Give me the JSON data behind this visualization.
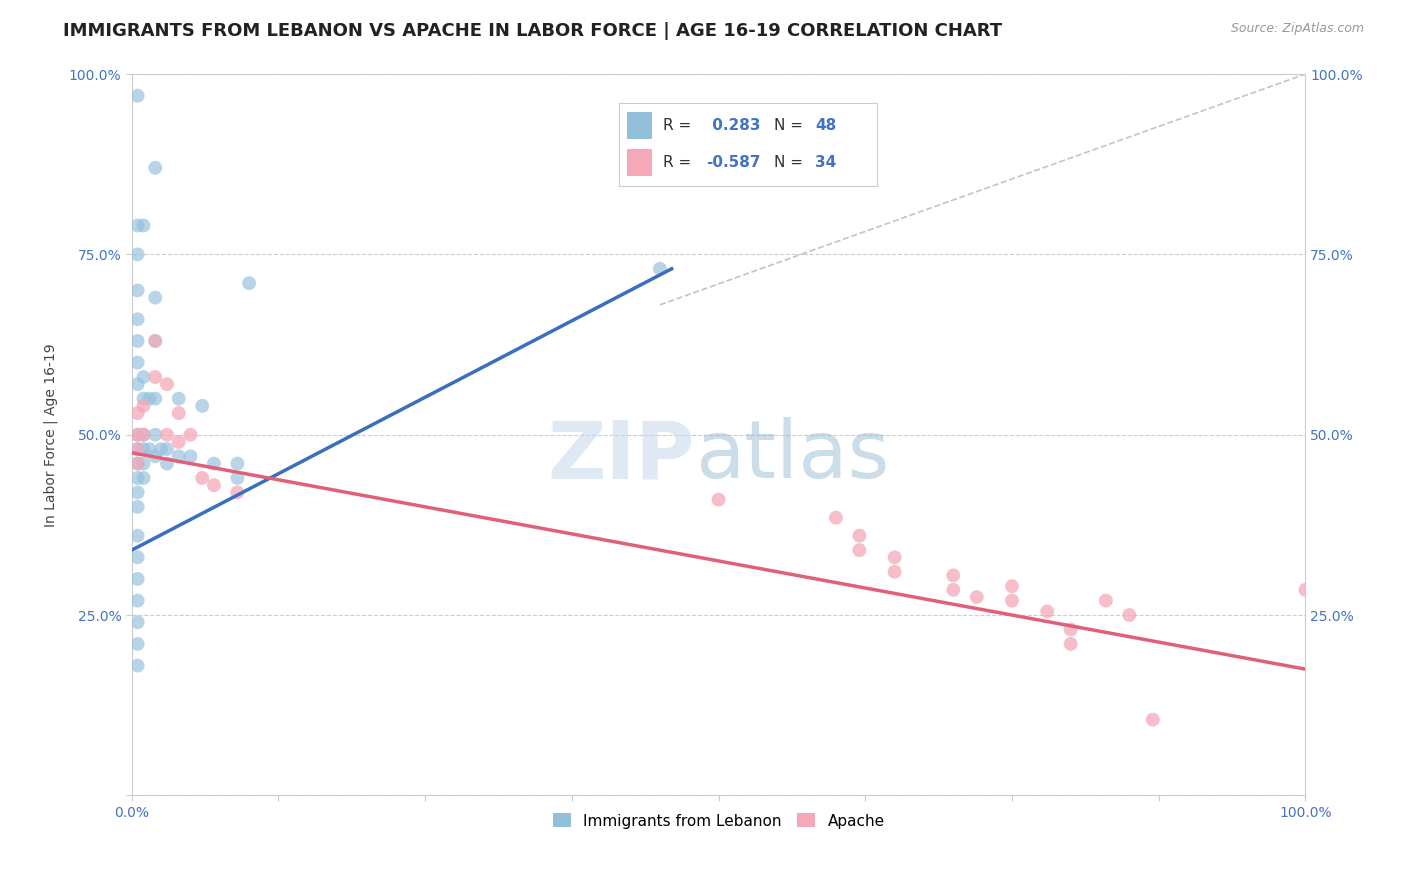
{
  "title": "IMMIGRANTS FROM LEBANON VS APACHE IN LABOR FORCE | AGE 16-19 CORRELATION CHART",
  "source": "Source: ZipAtlas.com",
  "ylabel": "In Labor Force | Age 16-19",
  "xlabel": "",
  "background_color": "#ffffff",
  "grid_color": "#c8c8c8",
  "lebanon_color": "#93bfdd",
  "apache_color": "#f4a8b8",
  "lebanon_R": 0.283,
  "lebanon_N": 48,
  "apache_R": -0.587,
  "apache_N": 34,
  "xmin": 0.0,
  "xmax": 1.0,
  "ymin": 0.0,
  "ymax": 1.0,
  "lebanon_points": [
    [
      0.005,
      0.97
    ],
    [
      0.02,
      0.87
    ],
    [
      0.005,
      0.79
    ],
    [
      0.005,
      0.75
    ],
    [
      0.01,
      0.79
    ],
    [
      0.005,
      0.7
    ],
    [
      0.02,
      0.69
    ],
    [
      0.005,
      0.66
    ],
    [
      0.005,
      0.63
    ],
    [
      0.02,
      0.63
    ],
    [
      0.005,
      0.6
    ],
    [
      0.005,
      0.57
    ],
    [
      0.01,
      0.58
    ],
    [
      0.01,
      0.55
    ],
    [
      0.015,
      0.55
    ],
    [
      0.02,
      0.55
    ],
    [
      0.04,
      0.55
    ],
    [
      0.06,
      0.54
    ],
    [
      0.45,
      0.73
    ],
    [
      0.1,
      0.71
    ],
    [
      0.005,
      0.5
    ],
    [
      0.005,
      0.48
    ],
    [
      0.005,
      0.46
    ],
    [
      0.005,
      0.44
    ],
    [
      0.005,
      0.42
    ],
    [
      0.005,
      0.4
    ],
    [
      0.01,
      0.5
    ],
    [
      0.01,
      0.48
    ],
    [
      0.01,
      0.46
    ],
    [
      0.01,
      0.44
    ],
    [
      0.015,
      0.48
    ],
    [
      0.02,
      0.5
    ],
    [
      0.02,
      0.47
    ],
    [
      0.025,
      0.48
    ],
    [
      0.03,
      0.48
    ],
    [
      0.03,
      0.46
    ],
    [
      0.04,
      0.47
    ],
    [
      0.05,
      0.47
    ],
    [
      0.07,
      0.46
    ],
    [
      0.09,
      0.46
    ],
    [
      0.09,
      0.44
    ],
    [
      0.005,
      0.36
    ],
    [
      0.005,
      0.33
    ],
    [
      0.005,
      0.3
    ],
    [
      0.005,
      0.27
    ],
    [
      0.005,
      0.24
    ],
    [
      0.005,
      0.21
    ],
    [
      0.005,
      0.18
    ]
  ],
  "apache_points": [
    [
      0.005,
      0.53
    ],
    [
      0.005,
      0.5
    ],
    [
      0.005,
      0.48
    ],
    [
      0.005,
      0.46
    ],
    [
      0.01,
      0.54
    ],
    [
      0.01,
      0.5
    ],
    [
      0.02,
      0.63
    ],
    [
      0.02,
      0.58
    ],
    [
      0.03,
      0.57
    ],
    [
      0.03,
      0.5
    ],
    [
      0.04,
      0.53
    ],
    [
      0.04,
      0.49
    ],
    [
      0.05,
      0.5
    ],
    [
      0.06,
      0.44
    ],
    [
      0.07,
      0.43
    ],
    [
      0.09,
      0.42
    ],
    [
      0.5,
      0.41
    ],
    [
      0.6,
      0.385
    ],
    [
      0.62,
      0.36
    ],
    [
      0.62,
      0.34
    ],
    [
      0.65,
      0.33
    ],
    [
      0.65,
      0.31
    ],
    [
      0.7,
      0.305
    ],
    [
      0.7,
      0.285
    ],
    [
      0.72,
      0.275
    ],
    [
      0.75,
      0.29
    ],
    [
      0.75,
      0.27
    ],
    [
      0.78,
      0.255
    ],
    [
      0.8,
      0.23
    ],
    [
      0.8,
      0.21
    ],
    [
      0.83,
      0.27
    ],
    [
      0.85,
      0.25
    ],
    [
      0.87,
      0.105
    ],
    [
      1.0,
      0.285
    ]
  ],
  "lebanon_line": {
    "x0": 0.0,
    "y0": 0.34,
    "x1": 0.46,
    "y1": 0.73
  },
  "apache_line": {
    "x0": 0.0,
    "y0": 0.475,
    "x1": 1.0,
    "y1": 0.175
  },
  "diagonal_line": {
    "x0": 0.45,
    "y0": 0.68,
    "x1": 1.0,
    "y1": 1.0
  },
  "yticks": [
    0.0,
    0.25,
    0.5,
    0.75,
    1.0
  ],
  "ytick_labels_left": [
    "",
    "25.0%",
    "50.0%",
    "75.0%",
    "100.0%"
  ],
  "ytick_labels_right": [
    "",
    "25.0%",
    "50.0%",
    "75.0%",
    "100.0%"
  ],
  "xticks": [
    0.0,
    0.125,
    0.25,
    0.375,
    0.5,
    0.625,
    0.75,
    0.875,
    1.0
  ],
  "xtick_labels": [
    "0.0%",
    "",
    "",
    "",
    "",
    "",
    "",
    "",
    "100.0%"
  ],
  "tick_color": "#4472c4",
  "title_fontsize": 13,
  "label_fontsize": 10,
  "tick_fontsize": 10,
  "legend_R_color": "#4472c4",
  "watermark_zip_color": "#c5d8ea",
  "watermark_atlas_color": "#8ab4cc"
}
